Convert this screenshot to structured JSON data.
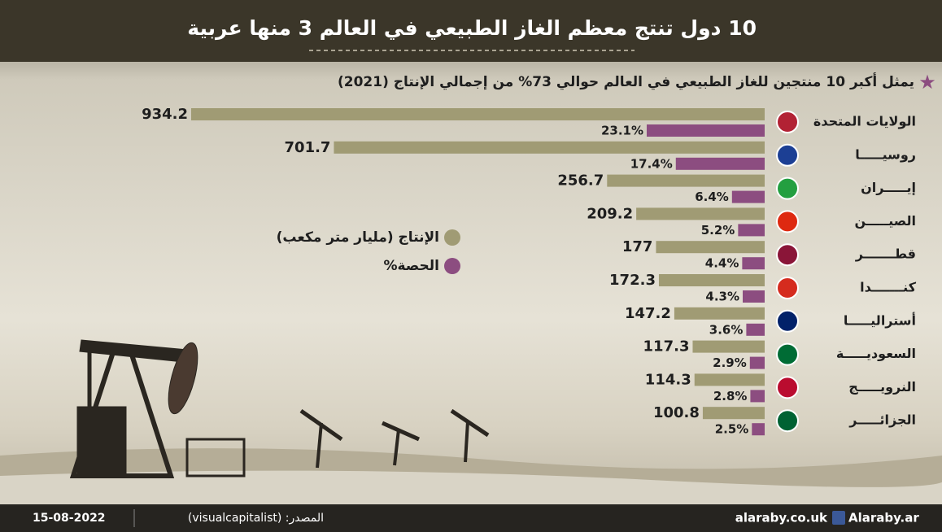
{
  "chart_data": {
    "type": "bar",
    "orientation": "horizontal",
    "title": "10 دول تنتج معظم الغاز الطبيعي في العالم 3 منها عربية",
    "subtitle": "يمثل أكبر 10 منتجين للغاز الطبيعي في العالم حوالي 73% من إجمالي الإنتاج (2021)",
    "categories": [
      "الولايات المتحدة",
      "روسيـــــا",
      "إيـــــران",
      "الصيـــــن",
      "قطـــــــر",
      "كنـــــــدا",
      "أستراليـــــا",
      "السعوديـــــة",
      "النرويـــــج",
      "الجزائـــــر"
    ],
    "series": [
      {
        "name": "الإنتاج (مليار متر مكعب)",
        "color": "#a09b74",
        "values": [
          934.2,
          701.7,
          256.7,
          209.2,
          177,
          172.3,
          147.2,
          117.3,
          114.3,
          100.8
        ]
      },
      {
        "name": "الحصة%",
        "color": "#8c4d80",
        "values": [
          23.1,
          17.4,
          6.4,
          5.2,
          4.4,
          4.3,
          3.6,
          2.9,
          2.8,
          2.5
        ],
        "value_labels": [
          "23.1%",
          "17.4%",
          "6.4%",
          "5.2%",
          "4.4%",
          "4.3%",
          "3.6%",
          "2.9%",
          "2.8%",
          "2.5%"
        ]
      }
    ]
  },
  "footer": {
    "date": "15-08-2022",
    "source": "المصدر: (visualcapitalist)",
    "website": "alaraby.co.uk",
    "social": "Alaraby.ar"
  }
}
